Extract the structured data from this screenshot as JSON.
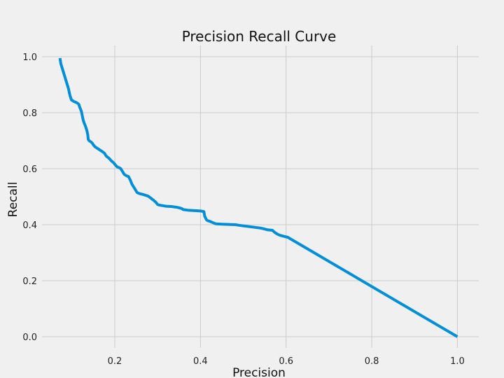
{
  "chart_data": {
    "type": "line",
    "title": "Precision Recall Curve",
    "xlabel": "Precision",
    "ylabel": "Recall",
    "xlim": [
      0.03,
      1.05
    ],
    "ylim": [
      -0.04,
      1.04
    ],
    "xticks": [
      0.2,
      0.4,
      0.6,
      0.8,
      1.0
    ],
    "xtick_labels": [
      "0.2",
      "0.4",
      "0.6",
      "0.8",
      "1.0"
    ],
    "yticks": [
      0.0,
      0.2,
      0.4,
      0.6,
      0.8,
      1.0
    ],
    "ytick_labels": [
      "0.0",
      "0.2",
      "0.4",
      "0.6",
      "0.8",
      "1.0"
    ],
    "grid": true,
    "line_color": "#008fd5",
    "series": [
      {
        "x": [
          0.072,
          0.074,
          0.077,
          0.08,
          0.083,
          0.086,
          0.088,
          0.09,
          0.092,
          0.094,
          0.096,
          0.099,
          0.102,
          0.104,
          0.108,
          0.112,
          0.116,
          0.118,
          0.122,
          0.124,
          0.126,
          0.128,
          0.132,
          0.135,
          0.137,
          0.138,
          0.14,
          0.145,
          0.148,
          0.15,
          0.154,
          0.157,
          0.16,
          0.164,
          0.168,
          0.172,
          0.176,
          0.18,
          0.186,
          0.189,
          0.192,
          0.198,
          0.202,
          0.206,
          0.21,
          0.214,
          0.218,
          0.222,
          0.228,
          0.232,
          0.236,
          0.24,
          0.246,
          0.25,
          0.252,
          0.256,
          0.26,
          0.266,
          0.272,
          0.278,
          0.284,
          0.29,
          0.296,
          0.3,
          0.304,
          0.312,
          0.32,
          0.332,
          0.346,
          0.356,
          0.36,
          0.37,
          0.38,
          0.39,
          0.4,
          0.408,
          0.41,
          0.414,
          0.416,
          0.422,
          0.428,
          0.436,
          0.45,
          0.466,
          0.482,
          0.49,
          0.5,
          0.52,
          0.54,
          0.546,
          0.556,
          0.568,
          0.574,
          0.58,
          0.586,
          0.596,
          0.604,
          1.0
        ],
        "y": [
          0.995,
          0.975,
          0.96,
          0.945,
          0.93,
          0.915,
          0.905,
          0.895,
          0.885,
          0.87,
          0.858,
          0.845,
          0.843,
          0.84,
          0.838,
          0.835,
          0.83,
          0.82,
          0.805,
          0.79,
          0.775,
          0.765,
          0.75,
          0.735,
          0.72,
          0.705,
          0.7,
          0.695,
          0.69,
          0.685,
          0.678,
          0.675,
          0.672,
          0.668,
          0.664,
          0.66,
          0.655,
          0.645,
          0.638,
          0.633,
          0.628,
          0.62,
          0.612,
          0.606,
          0.604,
          0.6,
          0.59,
          0.58,
          0.574,
          0.572,
          0.56,
          0.545,
          0.53,
          0.52,
          0.515,
          0.512,
          0.51,
          0.508,
          0.505,
          0.502,
          0.495,
          0.488,
          0.48,
          0.472,
          0.47,
          0.468,
          0.466,
          0.465,
          0.462,
          0.458,
          0.454,
          0.452,
          0.451,
          0.45,
          0.449,
          0.447,
          0.43,
          0.418,
          0.415,
          0.412,
          0.408,
          0.403,
          0.402,
          0.401,
          0.4,
          0.398,
          0.396,
          0.392,
          0.388,
          0.386,
          0.382,
          0.38,
          0.372,
          0.366,
          0.362,
          0.358,
          0.355,
          0.0
        ]
      }
    ]
  }
}
